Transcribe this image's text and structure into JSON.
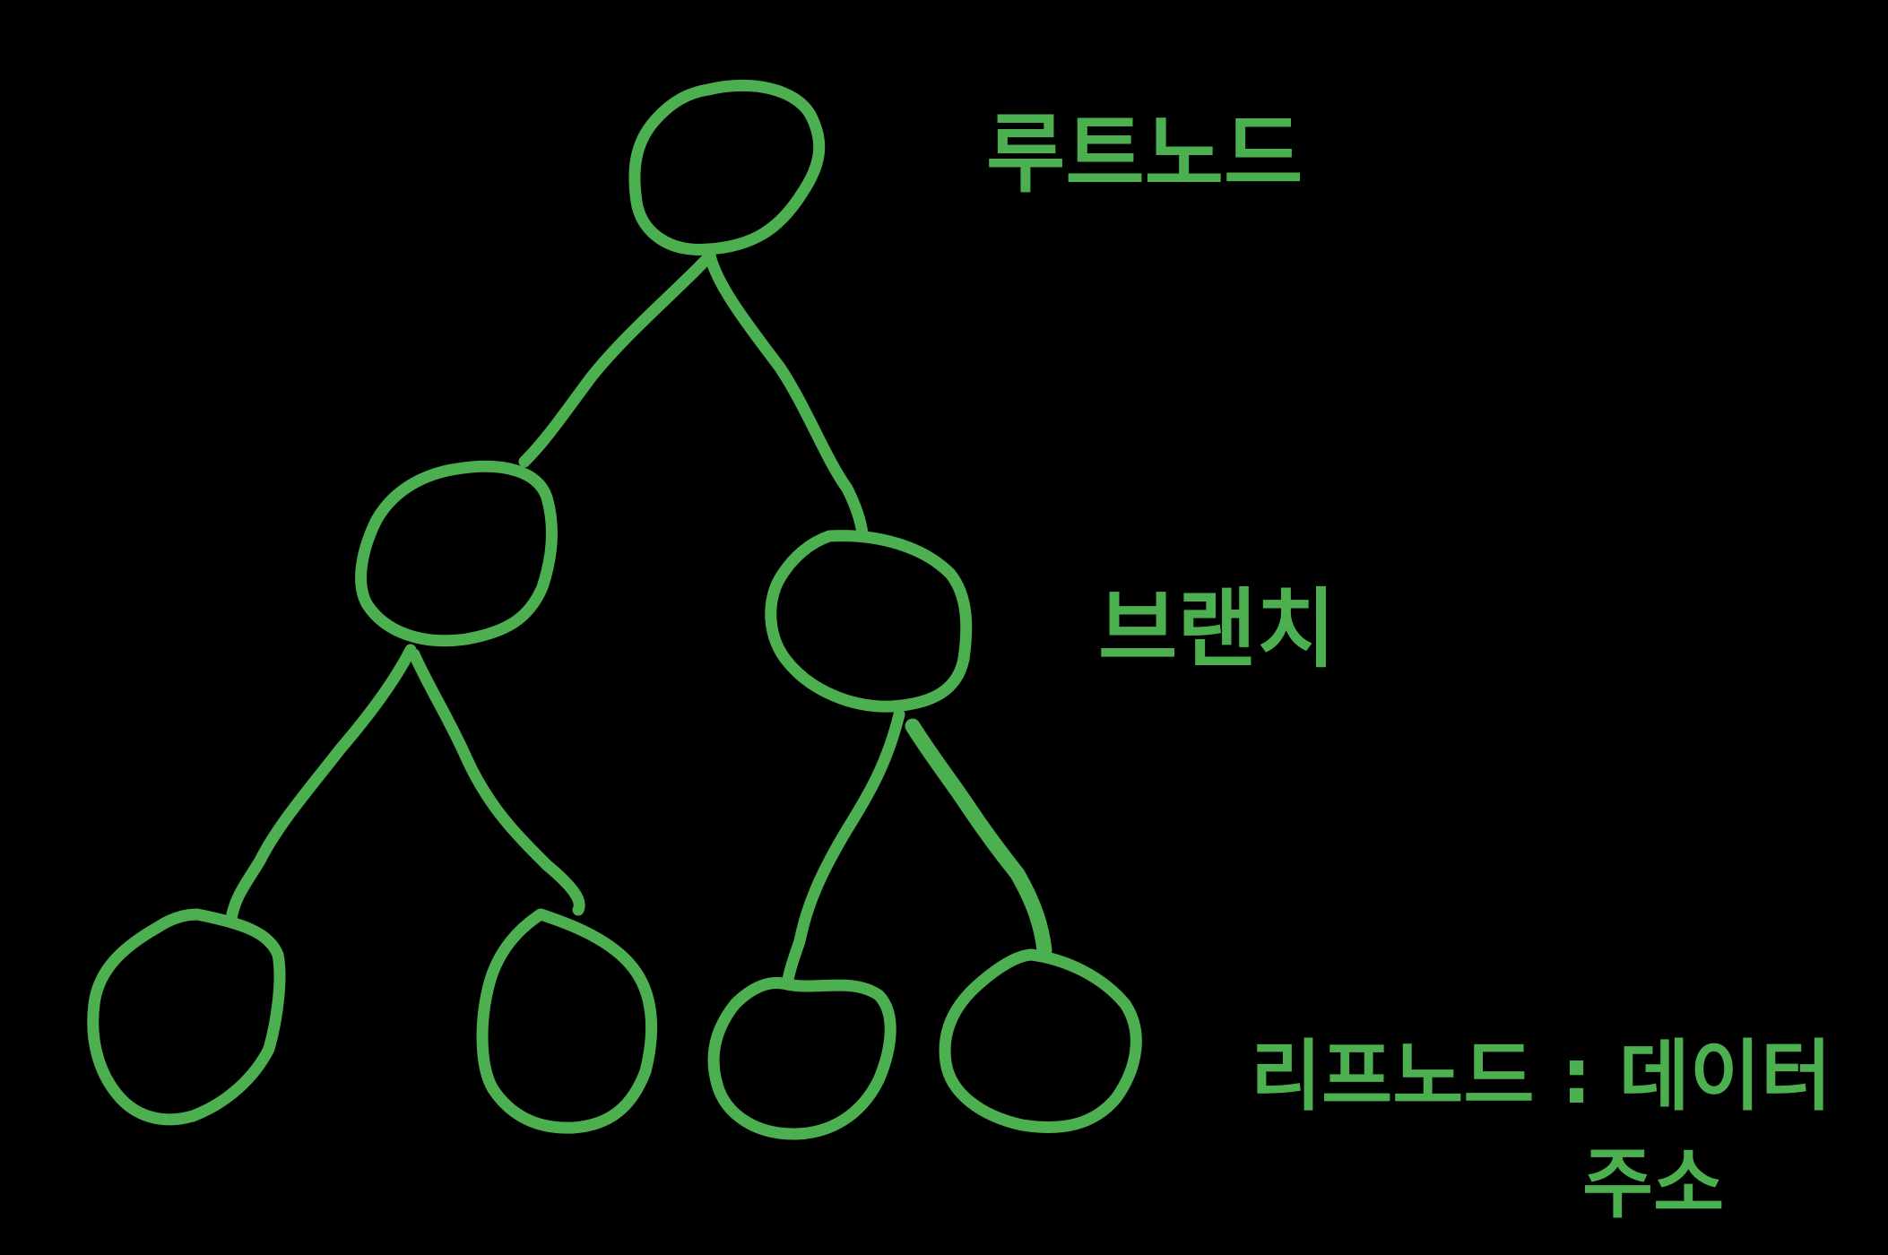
{
  "colors": {
    "background": "#000000",
    "ink": "#4CAF50"
  },
  "labels": {
    "root": "루트노드",
    "branch": "브랜치",
    "leaf_line1": "리프노드 : 데이터",
    "leaf_line2": "주소"
  },
  "tree": {
    "root": {
      "children": [
        "left",
        "right"
      ]
    },
    "left": {
      "children": [
        "left-left",
        "left-right"
      ]
    },
    "right": {
      "children": [
        "right-left",
        "right-right"
      ]
    }
  }
}
